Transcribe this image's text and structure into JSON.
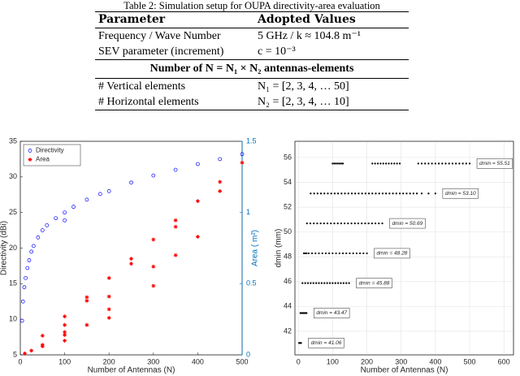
{
  "table": {
    "caption": "Table 2: Simulation setup for OUPA directivity-area evaluation",
    "header": [
      "Parameter",
      "Adopted Values"
    ],
    "rows": [
      [
        "Frequency / Wave Number",
        "5 GHz / k ≈ 104.8 m⁻¹"
      ],
      [
        "SEV parameter (increment)",
        "c = 10⁻³"
      ]
    ],
    "subheader": "Number of N = N₁ × N₂ antennas-elements",
    "rows2": [
      [
        "# Vertical elements",
        "N₁ = [2, 3, 4, … 50]"
      ],
      [
        "# Horizontal elements",
        "N₂ = [2, 3, 4, … 10]"
      ]
    ]
  },
  "chart_data": [
    {
      "type": "scatter",
      "x_label": "Number of Antennas (N)",
      "y_label": "Directivity (dBi)",
      "y2_label": "Area ( m²)",
      "y2_color": "#0072bd",
      "xlim": [
        0,
        500
      ],
      "xticks": [
        0,
        100,
        200,
        300,
        400,
        500
      ],
      "ylim": [
        5,
        35
      ],
      "yticks": [
        5,
        10,
        15,
        20,
        25,
        30,
        35
      ],
      "y2lim": [
        0,
        1.5
      ],
      "y2ticks": [
        0,
        0.5,
        1,
        1.5
      ],
      "legend": "upper left",
      "series": [
        {
          "name": "Directivity",
          "color": "#0000ff",
          "marker": "circle",
          "x": [
            4,
            6,
            9,
            12,
            16,
            20,
            25,
            30,
            40,
            50,
            60,
            80,
            100,
            100,
            120,
            150,
            180,
            200,
            250,
            300,
            350,
            400,
            450,
            500
          ],
          "values": [
            9.8,
            12.5,
            14.5,
            15.8,
            17.2,
            18.3,
            19.5,
            20.3,
            21.5,
            22.5,
            23.2,
            24.2,
            25.0,
            23.9,
            25.8,
            26.8,
            27.6,
            28.0,
            29.2,
            30.2,
            31.0,
            31.8,
            32.5,
            33.2
          ]
        },
        {
          "name": "Area",
          "color": "#ff0000",
          "marker": "star",
          "axis": "y2",
          "x": [
            10,
            25,
            50,
            50,
            50,
            100,
            100,
            100,
            100,
            100,
            150,
            150,
            150,
            200,
            200,
            200,
            200,
            250,
            250,
            300,
            300,
            300,
            350,
            350,
            350,
            400,
            400,
            450,
            450,
            500
          ],
          "values": [
            0.01,
            0.03,
            0.06,
            0.07,
            0.135,
            0.1,
            0.14,
            0.16,
            0.21,
            0.27,
            0.21,
            0.38,
            0.405,
            0.26,
            0.32,
            0.41,
            0.54,
            0.64,
            0.675,
            0.485,
            0.62,
            0.81,
            0.7,
            0.9,
            0.945,
            0.83,
            1.08,
            1.15,
            1.215,
            1.35
          ]
        }
      ]
    },
    {
      "type": "levels",
      "x_label": "Number of Antennas (N)",
      "y_label": "dmin (mm)",
      "grid": true,
      "xlim": [
        -10,
        628
      ],
      "xticks": [
        0,
        100,
        200,
        300,
        400,
        500,
        600
      ],
      "ylim": [
        40.1,
        57.3
      ],
      "yticks": [
        42,
        44,
        46,
        48,
        50,
        52,
        54,
        56
      ],
      "series": [
        {
          "value": 41.06,
          "label": "dmin = 41.06",
          "color": "#000000",
          "x": [
            2,
            4,
            6,
            8
          ]
        },
        {
          "value": 43.47,
          "label": "dmin = 43.47",
          "color": "#000000",
          "x": [
            6,
            9,
            12,
            15,
            18,
            21,
            24
          ]
        },
        {
          "value": 45.88,
          "label": "dmin = 45.88",
          "color": "#000000",
          "x": [
            12,
            20,
            28,
            36,
            44,
            52,
            60,
            68,
            76,
            84,
            92,
            100,
            108,
            116,
            124,
            132,
            140,
            148
          ]
        },
        {
          "value": 48.28,
          "label": "dmin = 48.28",
          "color": "#000000",
          "x": [
            16,
            20,
            24,
            30,
            40,
            50,
            60,
            70,
            80,
            90,
            100,
            110,
            120,
            130,
            140,
            150,
            160,
            170,
            180,
            190,
            200
          ]
        },
        {
          "value": 50.69,
          "label": "dmin = 50.69",
          "color": "#000000",
          "x": [
            25,
            35,
            45,
            55,
            65,
            75,
            85,
            95,
            105,
            115,
            125,
            135,
            145,
            155,
            165,
            175,
            185,
            195,
            205,
            215,
            225,
            235,
            245
          ]
        },
        {
          "value": 53.1,
          "label": "dmin = 53.10",
          "color": "#000000",
          "x": [
            36,
            46,
            56,
            66,
            76,
            86,
            96,
            106,
            116,
            126,
            136,
            146,
            156,
            166,
            176,
            186,
            196,
            206,
            216,
            226,
            236,
            246,
            256,
            266,
            276,
            286,
            296,
            306,
            316,
            326,
            336,
            346,
            360,
            380,
            400
          ]
        },
        {
          "value": 55.51,
          "label": "dmin = 55.51",
          "color": "#000000",
          "x": [
            100,
            105,
            110,
            115,
            120,
            125,
            130,
            216,
            224,
            232,
            240,
            248,
            256,
            264,
            272,
            280,
            288,
            296,
            350,
            360,
            370,
            380,
            390,
            400,
            410,
            420,
            430,
            440,
            450,
            460,
            470,
            480,
            490,
            500
          ]
        }
      ]
    }
  ]
}
